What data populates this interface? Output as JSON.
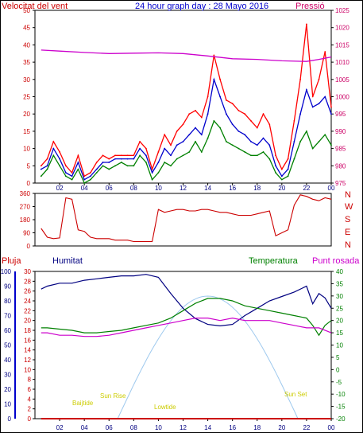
{
  "colors": {
    "frame": "#000000",
    "wind_speed": "#ff0000",
    "wind_avg": "#0000cc",
    "wind_dir": "#cc0000",
    "pressure": "#cc00cc",
    "pressure_label": "#cc0066",
    "gust_green": "#008000",
    "humidity": "#000080",
    "temperature": "#008000",
    "dewpoint": "#cc00cc",
    "rain": "#cc0000",
    "solar": "#9ec9ee",
    "sun_marks": "#cccc00",
    "title": "#0000cc",
    "left_axis_label": "#cc0000"
  },
  "header": {
    "left_label": "Velocitat del vent",
    "title": "24 hour graph day : 28 Mayo 2016",
    "right_label": "Pressió"
  },
  "middle_labels": [
    "N",
    "W",
    "S",
    "E",
    "N"
  ],
  "bottom_header": {
    "rain": "Pluja",
    "humidity": "Humitat",
    "temperature": "Temperatura",
    "dewpoint": "Punt rosada"
  },
  "annotations": {
    "bajtide": "Baijtide",
    "sunrise": "Sun Rise",
    "lowtide": "Lowtide",
    "sunset": "Sun Set"
  },
  "chart_data": [
    {
      "type": "line",
      "title": "24 hour graph day : 28 Mayo 2016",
      "x_ticks": [
        "02",
        "04",
        "06",
        "08",
        "10",
        "12",
        "14",
        "16",
        "18",
        "20",
        "22",
        "00"
      ],
      "y_left_label": "Velocitat del vent",
      "y_left_ticks": [
        0,
        5,
        10,
        15,
        20,
        25,
        30,
        35,
        40,
        45,
        50
      ],
      "ylim_left": [
        0,
        50
      ],
      "y_right_label": "Pressió",
      "y_right_ticks": [
        975,
        980,
        985,
        990,
        995,
        1000,
        1005,
        1010,
        1015,
        1020,
        1025
      ],
      "ylim_right": [
        975,
        1025
      ],
      "series": [
        {
          "axis": "left",
          "x": [
            0.5,
            1,
            1.5,
            2,
            2.5,
            3,
            3.5,
            4,
            4.5,
            5,
            5.5,
            6,
            6.5,
            7,
            7.5,
            8,
            8.5,
            9,
            9.5,
            10,
            10.5,
            11,
            11.5,
            12,
            12.5,
            13,
            13.5,
            14,
            14.5,
            15,
            15.5,
            16,
            16.5,
            17,
            17.5,
            18,
            18.5,
            19,
            19.5,
            20,
            20.5,
            21,
            21.5,
            22,
            22.5,
            23,
            23.5,
            24
          ],
          "values": [
            5,
            7,
            12,
            9,
            5,
            3,
            8,
            2,
            3,
            6,
            8,
            7,
            8,
            8,
            8,
            8,
            12,
            10,
            4,
            9,
            14,
            11,
            15,
            17,
            20,
            21,
            19,
            25,
            37,
            30,
            24,
            23,
            21,
            20,
            18,
            16,
            20,
            17,
            8,
            4,
            7,
            18,
            30,
            46,
            25,
            30,
            38,
            22
          ]
        },
        {
          "axis": "left",
          "x": [
            0.5,
            1,
            1.5,
            2,
            2.5,
            3,
            3.5,
            4,
            4.5,
            5,
            5.5,
            6,
            6.5,
            7,
            7.5,
            8,
            8.5,
            9,
            9.5,
            10,
            10.5,
            11,
            11.5,
            12,
            12.5,
            13,
            13.5,
            14,
            14.5,
            15,
            15.5,
            16,
            16.5,
            17,
            17.5,
            18,
            18.5,
            19,
            19.5,
            20,
            20.5,
            21,
            21.5,
            22,
            22.5,
            23,
            23.5,
            24
          ],
          "values": [
            4,
            5,
            10,
            7,
            3,
            2,
            6,
            1,
            2,
            4,
            6,
            6,
            7,
            7,
            7,
            7,
            10,
            8,
            3,
            6,
            10,
            8,
            11,
            12,
            14,
            16,
            14,
            20,
            30,
            25,
            20,
            17,
            15,
            14,
            12,
            11,
            13,
            11,
            5,
            2,
            4,
            12,
            20,
            27,
            22,
            23,
            25,
            20
          ]
        },
        {
          "axis": "left",
          "x": [
            0.5,
            1,
            1.5,
            2,
            2.5,
            3,
            3.5,
            4,
            4.5,
            5,
            5.5,
            6,
            6.5,
            7,
            7.5,
            8,
            8.5,
            9,
            9.5,
            10,
            10.5,
            11,
            11.5,
            12,
            12.5,
            13,
            13.5,
            14,
            14.5,
            15,
            15.5,
            16,
            16.5,
            17,
            17.5,
            18,
            18.5,
            19,
            19.5,
            20,
            20.5,
            21,
            21.5,
            22,
            22.5,
            23,
            23.5,
            24
          ],
          "values": [
            2,
            4,
            8,
            5,
            2,
            1,
            4,
            0,
            1,
            3,
            5,
            4,
            5,
            6,
            5,
            5,
            8,
            6,
            1,
            3,
            6,
            5,
            7,
            8,
            9,
            12,
            9,
            13,
            18,
            16,
            12,
            11,
            10,
            9,
            8,
            8,
            9,
            7,
            3,
            1,
            2,
            7,
            12,
            15,
            10,
            12,
            14,
            11
          ]
        },
        {
          "axis": "right",
          "x": [
            0.5,
            2,
            4,
            6,
            8,
            10,
            12,
            14,
            16,
            18,
            20,
            22,
            23,
            24
          ],
          "values": [
            1013.5,
            1013.2,
            1012.8,
            1012.5,
            1012.6,
            1012.7,
            1012.5,
            1011.8,
            1011.0,
            1010.8,
            1010.4,
            1010.2,
            1010.8,
            1011.5
          ]
        }
      ]
    },
    {
      "type": "line",
      "title": "",
      "x_ticks": [
        "02",
        "04",
        "06",
        "08",
        "10",
        "12",
        "14",
        "16",
        "18",
        "20",
        "22",
        "00"
      ],
      "y_left_ticks": [
        0,
        90,
        180,
        270,
        360
      ],
      "ylim_left": [
        0,
        360
      ],
      "y_right_ticks": [
        "N",
        "W",
        "S",
        "E",
        "N"
      ],
      "series": [
        {
          "x": [
            0.5,
            1,
            1.5,
            2,
            2.5,
            3,
            3.5,
            4,
            4.5,
            5,
            5.5,
            6,
            6.5,
            7,
            7.5,
            8,
            8.5,
            9,
            9.5,
            10,
            10.5,
            11,
            11.5,
            12,
            12.5,
            13,
            13.5,
            14,
            14.5,
            15,
            15.5,
            16,
            16.5,
            17,
            17.5,
            18,
            18.5,
            19,
            19.5,
            20,
            20.5,
            21,
            21.5,
            22,
            22.5,
            23,
            23.5,
            24
          ],
          "values": [
            120,
            60,
            50,
            55,
            330,
            320,
            110,
            100,
            60,
            50,
            50,
            50,
            40,
            40,
            40,
            30,
            30,
            30,
            30,
            250,
            230,
            240,
            250,
            250,
            240,
            240,
            250,
            250,
            240,
            230,
            230,
            220,
            210,
            210,
            210,
            220,
            230,
            240,
            70,
            90,
            110,
            280,
            350,
            340,
            320,
            310,
            330,
            320
          ]
        }
      ]
    },
    {
      "type": "line",
      "title": "",
      "x_ticks": [
        "02",
        "04",
        "06",
        "08",
        "10",
        "12",
        "14",
        "16",
        "18",
        "20",
        "22",
        "00"
      ],
      "y_humidity_ticks": [
        0,
        10,
        20,
        30,
        40,
        50,
        60,
        70,
        80,
        90,
        100
      ],
      "ylim_humidity": [
        0,
        100
      ],
      "y_rain_ticks": [
        0,
        2,
        4,
        6,
        8,
        10,
        12,
        14,
        16,
        18,
        20,
        22,
        24,
        26,
        28,
        30
      ],
      "ylim_rain": [
        0,
        30
      ],
      "y_temp_ticks": [
        -20,
        -15,
        -10,
        -5,
        0,
        5,
        10,
        15,
        20,
        25,
        30,
        35,
        40
      ],
      "ylim_temp": [
        -20,
        40
      ],
      "series": [
        {
          "name": "Humitat",
          "axis": "humidity",
          "x": [
            0.5,
            1,
            2,
            3,
            4,
            5,
            6,
            7,
            8,
            9,
            10,
            11,
            12,
            13,
            14,
            15,
            16,
            17,
            18,
            19,
            20,
            21,
            22,
            22.5,
            23,
            23.5,
            24
          ],
          "values": [
            88,
            90,
            92,
            92,
            94,
            95,
            96,
            97,
            97,
            98,
            96,
            85,
            75,
            68,
            64,
            63,
            64,
            70,
            75,
            80,
            83,
            86,
            90,
            78,
            85,
            82,
            75
          ]
        },
        {
          "name": "Temperatura",
          "axis": "temp",
          "x": [
            0.5,
            1,
            2,
            3,
            4,
            5,
            6,
            7,
            8,
            9,
            10,
            11,
            12,
            13,
            14,
            15,
            16,
            17,
            18,
            19,
            20,
            21,
            22,
            22.5,
            23,
            23.5,
            24
          ],
          "values": [
            17,
            17,
            16.5,
            16,
            15,
            15,
            15.5,
            16,
            17,
            18,
            19,
            21,
            24,
            27,
            29,
            29,
            28,
            26,
            25,
            24,
            23,
            22,
            21,
            18,
            14,
            18,
            20
          ]
        },
        {
          "name": "Punt rosada",
          "axis": "temp",
          "x": [
            0.5,
            1,
            2,
            3,
            4,
            5,
            6,
            7,
            8,
            9,
            10,
            11,
            12,
            13,
            14,
            15,
            16,
            17,
            18,
            19,
            20,
            21,
            22,
            23,
            24
          ],
          "values": [
            15,
            15,
            14,
            14,
            13.5,
            13.5,
            14,
            15,
            16,
            17,
            18,
            19,
            20,
            21,
            21,
            20,
            21,
            20,
            20,
            20,
            19,
            18,
            17,
            17,
            15
          ]
        },
        {
          "name": "Pluja",
          "axis": "rain",
          "x": [
            0.5,
            20,
            22,
            24
          ],
          "values": [
            0,
            0,
            0,
            0
          ]
        }
      ]
    }
  ]
}
